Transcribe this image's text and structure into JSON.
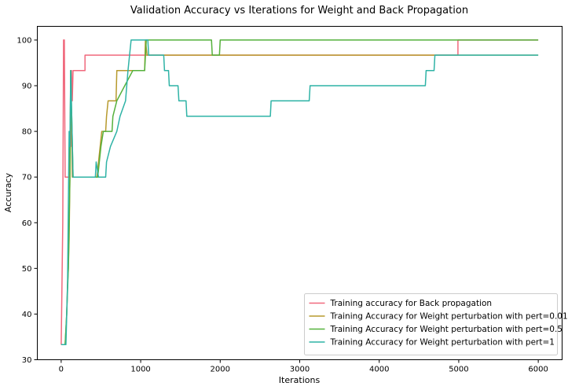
{
  "chart_data": {
    "type": "line",
    "title": "Validation Accuracy vs Iterations for Weight and Back Propagation",
    "xlabel": "Iterations",
    "ylabel": "Accuracy",
    "xlim": [
      -300,
      6300
    ],
    "ylim": [
      30,
      103
    ],
    "xticks": [
      0,
      1000,
      2000,
      3000,
      4000,
      5000,
      6000
    ],
    "yticks": [
      30,
      40,
      50,
      60,
      70,
      80,
      90,
      100
    ],
    "grid": false,
    "legend_position": "lower-right",
    "series": [
      {
        "name": "Training accuracy for Back propagation",
        "color": "#f0697d",
        "points": [
          [
            0,
            33.3
          ],
          [
            20,
            60
          ],
          [
            30,
            100
          ],
          [
            40,
            100
          ],
          [
            50,
            70
          ],
          [
            100,
            70
          ],
          [
            110,
            76.7
          ],
          [
            120,
            76.7
          ],
          [
            130,
            93.3
          ],
          [
            140,
            86.7
          ],
          [
            150,
            93.3
          ],
          [
            300,
            93.3
          ],
          [
            300,
            96.7
          ],
          [
            4990,
            96.7
          ],
          [
            4990,
            100
          ],
          [
            6000,
            100
          ]
        ]
      },
      {
        "name": "Training Accuracy for Weight perturbation with pert=0.01",
        "color": "#b79a2e",
        "points": [
          [
            0,
            33.3
          ],
          [
            50,
            33.3
          ],
          [
            70,
            40
          ],
          [
            80,
            46.7
          ],
          [
            90,
            50
          ],
          [
            100,
            56.7
          ],
          [
            110,
            70
          ],
          [
            120,
            93.3
          ],
          [
            140,
            70
          ],
          [
            450,
            70
          ],
          [
            470,
            73.3
          ],
          [
            490,
            76.7
          ],
          [
            510,
            80
          ],
          [
            560,
            80
          ],
          [
            570,
            83.3
          ],
          [
            590,
            86.7
          ],
          [
            690,
            86.7
          ],
          [
            700,
            93.3
          ],
          [
            1050,
            93.3
          ],
          [
            1060,
            100
          ],
          [
            1080,
            96.7
          ],
          [
            1500,
            96.7
          ],
          [
            2500,
            96.7
          ],
          [
            4000,
            96.7
          ],
          [
            6000,
            96.7
          ]
        ]
      },
      {
        "name": "Training Accuracy for Weight perturbation with pert=0.5",
        "color": "#55b13c",
        "points": [
          [
            0,
            33.3
          ],
          [
            50,
            33.3
          ],
          [
            70,
            40
          ],
          [
            90,
            50
          ],
          [
            110,
            70
          ],
          [
            120,
            93.3
          ],
          [
            150,
            70
          ],
          [
            460,
            70
          ],
          [
            480,
            73.3
          ],
          [
            500,
            76.7
          ],
          [
            530,
            80
          ],
          [
            640,
            80
          ],
          [
            650,
            83.3
          ],
          [
            700,
            86.7
          ],
          [
            800,
            90
          ],
          [
            900,
            93.3
          ],
          [
            1050,
            93.3
          ],
          [
            1070,
            100
          ],
          [
            1890,
            100
          ],
          [
            1900,
            96.7
          ],
          [
            1990,
            96.7
          ],
          [
            2000,
            100
          ],
          [
            6000,
            100
          ]
        ]
      },
      {
        "name": "Training Accuracy for Weight perturbation with pert=1",
        "color": "#2fb3a6",
        "points": [
          [
            0,
            33.3
          ],
          [
            60,
            33.3
          ],
          [
            80,
            46.7
          ],
          [
            100,
            80
          ],
          [
            110,
            76.7
          ],
          [
            120,
            93.3
          ],
          [
            150,
            70
          ],
          [
            430,
            70
          ],
          [
            440,
            73.3
          ],
          [
            470,
            70
          ],
          [
            560,
            70
          ],
          [
            570,
            73.3
          ],
          [
            620,
            76.7
          ],
          [
            700,
            80
          ],
          [
            740,
            83.3
          ],
          [
            810,
            86.7
          ],
          [
            840,
            93.3
          ],
          [
            880,
            100
          ],
          [
            1090,
            100
          ],
          [
            1100,
            96.7
          ],
          [
            1290,
            96.7
          ],
          [
            1300,
            93.3
          ],
          [
            1350,
            93.3
          ],
          [
            1360,
            90
          ],
          [
            1470,
            90
          ],
          [
            1480,
            86.7
          ],
          [
            1570,
            86.7
          ],
          [
            1580,
            83.3
          ],
          [
            2630,
            83.3
          ],
          [
            2640,
            86.7
          ],
          [
            3120,
            86.7
          ],
          [
            3130,
            90
          ],
          [
            4580,
            90
          ],
          [
            4590,
            93.3
          ],
          [
            4690,
            93.3
          ],
          [
            4700,
            96.7
          ],
          [
            6000,
            96.7
          ]
        ]
      }
    ]
  }
}
